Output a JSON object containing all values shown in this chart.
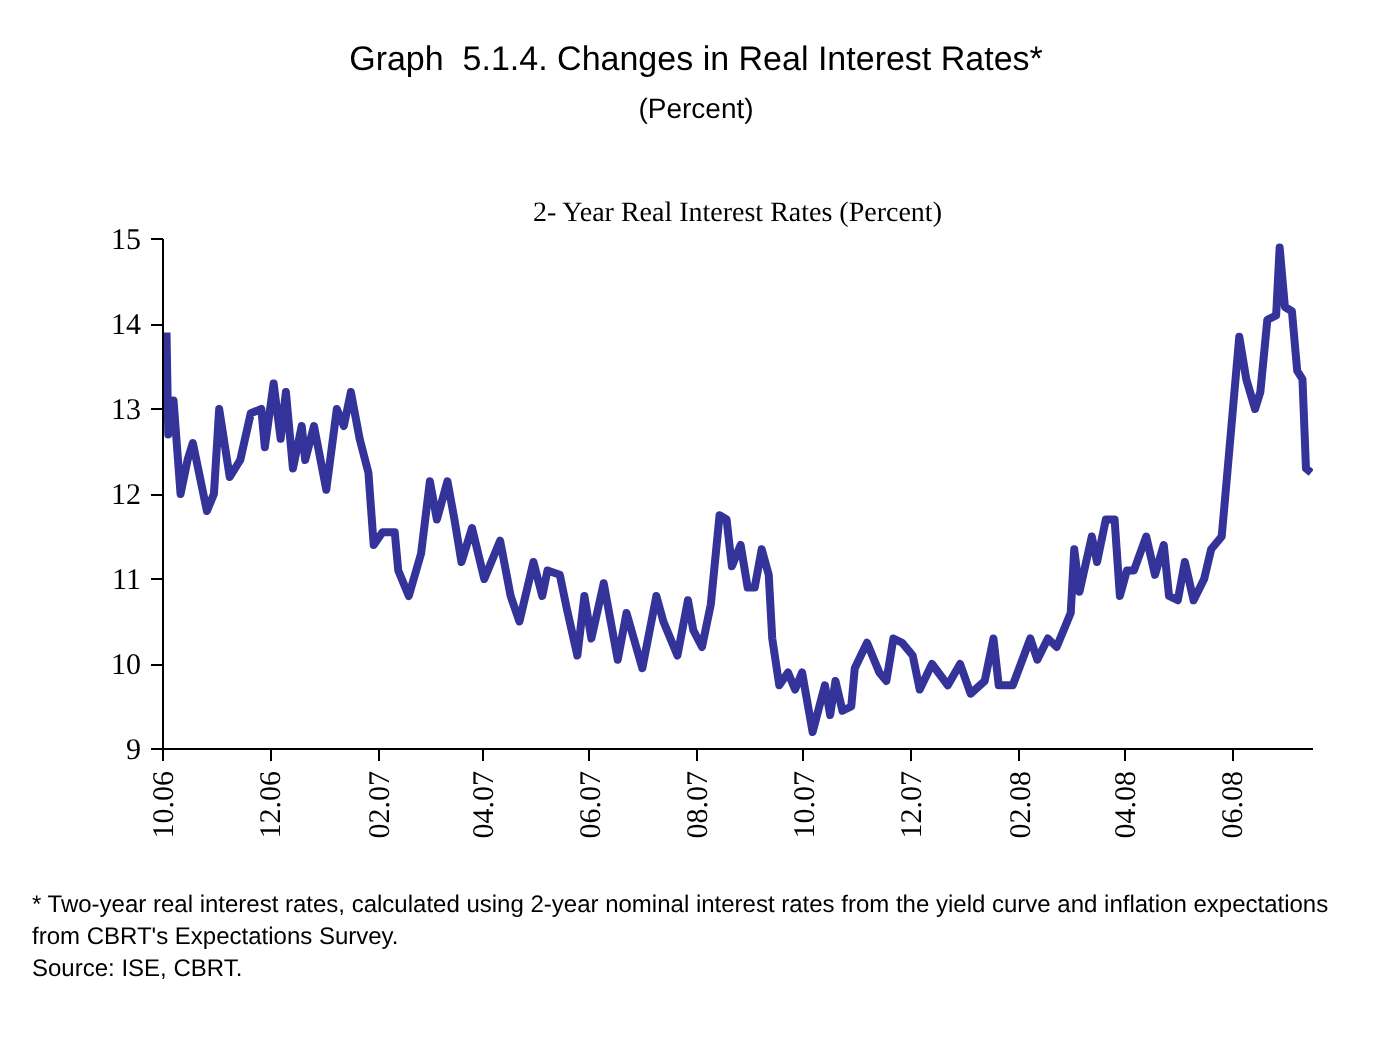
{
  "chart_data": {
    "type": "line",
    "title": "Graph  5.1.4. Changes in Real Interest Rates*",
    "subtitle": "(Percent)",
    "annotations": [
      "2- Year Real Interest Rates (Percent)",
      "* Two-year real interest rates, calculated using 2-year nominal interest rates from the yield curve and inflation expectations from CBRT's Expectations Survey.",
      "Source: ISE, CBRT."
    ],
    "series": [
      {
        "color": "#333399",
        "x": [
          "2006-10-03",
          "2006-10-04",
          "2006-10-07",
          "2006-10-11",
          "2006-10-15",
          "2006-10-18",
          "2006-10-26",
          "2006-10-30",
          "2006-11-02",
          "2006-11-08",
          "2006-11-14",
          "2006-11-20",
          "2006-11-26",
          "2006-11-28",
          "2006-12-03",
          "2006-12-07",
          "2006-12-10",
          "2006-12-14",
          "2006-12-19",
          "2006-12-21",
          "2006-12-26",
          "2007-01-02",
          "2007-01-08",
          "2007-01-12",
          "2007-01-16",
          "2007-01-21",
          "2007-01-26",
          "2007-01-29",
          "2007-02-03",
          "2007-02-10",
          "2007-02-12",
          "2007-02-18",
          "2007-02-25",
          "2007-03-02",
          "2007-03-06",
          "2007-03-12",
          "2007-03-16",
          "2007-03-20",
          "2007-03-26",
          "2007-04-02",
          "2007-04-11",
          "2007-04-17",
          "2007-04-22",
          "2007-04-30",
          "2007-05-05",
          "2007-05-08",
          "2007-05-15",
          "2007-05-19",
          "2007-05-25",
          "2007-05-29",
          "2007-06-02",
          "2007-06-09",
          "2007-06-17",
          "2007-06-22",
          "2007-07-01",
          "2007-07-09",
          "2007-07-13",
          "2007-07-21",
          "2007-07-27",
          "2007-07-30",
          "2007-08-04",
          "2007-08-09",
          "2007-08-14",
          "2007-08-18",
          "2007-08-21",
          "2007-08-26",
          "2007-08-30",
          "2007-09-03",
          "2007-09-07",
          "2007-09-11",
          "2007-09-13",
          "2007-09-17",
          "2007-09-22",
          "2007-09-26",
          "2007-09-30",
          "2007-10-06",
          "2007-10-13",
          "2007-10-16",
          "2007-10-19",
          "2007-10-23",
          "2007-10-28",
          "2007-10-30",
          "2007-11-06",
          "2007-11-13",
          "2007-11-17",
          "2007-11-21",
          "2007-11-26",
          "2007-12-02",
          "2007-12-06",
          "2007-12-13",
          "2007-12-22",
          "2007-12-29",
          "2008-01-04",
          "2008-01-12",
          "2008-01-17",
          "2008-01-20",
          "2008-01-28",
          "2008-02-07",
          "2008-02-11",
          "2008-02-17",
          "2008-02-22",
          "2008-03-01",
          "2008-03-03",
          "2008-03-06",
          "2008-03-13",
          "2008-03-16",
          "2008-03-21",
          "2008-03-26",
          "2008-03-29",
          "2008-04-02",
          "2008-04-06",
          "2008-04-13",
          "2008-04-18",
          "2008-04-23",
          "2008-04-26",
          "2008-05-01",
          "2008-05-05",
          "2008-05-10",
          "2008-05-16",
          "2008-05-20",
          "2008-05-26",
          "2008-05-29",
          "2008-06-05",
          "2008-06-09",
          "2008-06-14",
          "2008-06-17",
          "2008-06-21",
          "2008-06-26",
          "2008-06-28",
          "2008-07-01",
          "2008-07-05",
          "2008-07-08",
          "2008-07-11",
          "2008-07-13",
          "2008-07-16"
        ],
        "values": [
          13.9,
          12.7,
          13.1,
          12.0,
          12.4,
          12.6,
          11.8,
          12.0,
          13.0,
          12.2,
          12.4,
          12.95,
          13.0,
          12.55,
          13.3,
          12.65,
          13.2,
          12.3,
          12.8,
          12.4,
          12.8,
          12.05,
          13.0,
          12.8,
          13.2,
          12.65,
          12.25,
          11.4,
          11.55,
          11.55,
          11.1,
          10.8,
          11.3,
          12.15,
          11.7,
          12.15,
          11.7,
          11.2,
          11.6,
          11.0,
          11.45,
          10.8,
          10.5,
          11.2,
          10.8,
          11.1,
          11.05,
          10.65,
          10.1,
          10.8,
          10.3,
          10.95,
          10.05,
          10.6,
          9.95,
          10.8,
          10.5,
          10.1,
          10.75,
          10.4,
          10.2,
          10.7,
          11.75,
          11.7,
          11.15,
          11.4,
          10.9,
          10.9,
          11.35,
          11.05,
          10.3,
          9.75,
          9.9,
          9.7,
          9.9,
          9.2,
          9.75,
          9.4,
          9.8,
          9.45,
          9.5,
          9.95,
          10.25,
          9.9,
          9.8,
          10.3,
          10.25,
          10.1,
          9.7,
          10.0,
          9.75,
          10.0,
          9.65,
          9.8,
          10.3,
          9.75,
          9.75,
          10.3,
          10.05,
          10.3,
          10.2,
          10.6,
          11.35,
          10.85,
          11.5,
          11.2,
          11.7,
          11.7,
          10.8,
          11.1,
          11.1,
          11.5,
          11.05,
          11.4,
          10.8,
          10.75,
          11.2,
          10.75,
          11.0,
          11.35,
          11.5,
          12.2,
          13.85,
          13.35,
          13.0,
          13.2,
          14.05,
          14.1,
          14.9,
          14.2,
          14.15,
          13.45,
          13.35,
          12.3,
          12.25
        ]
      }
    ],
    "xlim": [
      "2006-10-01",
      "2008-07-17"
    ],
    "xticks": [
      {
        "value": "2006-10-01",
        "label": "10.06"
      },
      {
        "value": "2006-12-01",
        "label": "12.06"
      },
      {
        "value": "2007-02-01",
        "label": "02.07"
      },
      {
        "value": "2007-04-01",
        "label": "04.07"
      },
      {
        "value": "2007-06-01",
        "label": "06.07"
      },
      {
        "value": "2007-08-01",
        "label": "08.07"
      },
      {
        "value": "2007-10-01",
        "label": "10.07"
      },
      {
        "value": "2007-12-01",
        "label": "12.07"
      },
      {
        "value": "2008-02-01",
        "label": "02.08"
      },
      {
        "value": "2008-04-01",
        "label": "04.08"
      },
      {
        "value": "2008-06-01",
        "label": "06.08"
      }
    ],
    "ylim": [
      9,
      15
    ],
    "yticks": [
      9,
      10,
      11,
      12,
      13,
      14,
      15
    ],
    "grid": false,
    "marker": "none",
    "line_style": "solid"
  }
}
